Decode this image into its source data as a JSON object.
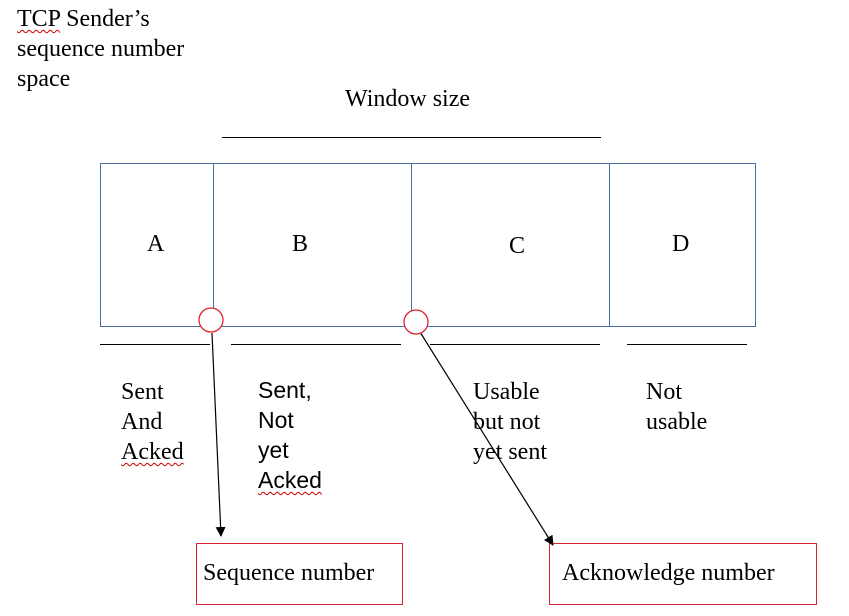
{
  "title_line1_a": "TCP",
  "title_line1_b": " Sender’s",
  "title_line2": "sequence number",
  "title_line3": "space",
  "window_label": "Window size",
  "segments": [
    "A",
    "B",
    "C",
    "D"
  ],
  "captions": {
    "sent_acked": [
      "Sent",
      "And",
      "Acked"
    ],
    "sent_not_acked": [
      "Sent,",
      "Not",
      "yet",
      "Acked"
    ],
    "usable": [
      "Usable",
      "but not",
      "yet sent"
    ],
    "not_usable": [
      "Not",
      "usable"
    ]
  },
  "labels": {
    "sequence": "Sequence number",
    "acknowledge": "Acknowledge number"
  },
  "colors": {
    "box_border": "#4a6fa5",
    "marker": "#d9232e",
    "spellcheck": "#d00000"
  }
}
